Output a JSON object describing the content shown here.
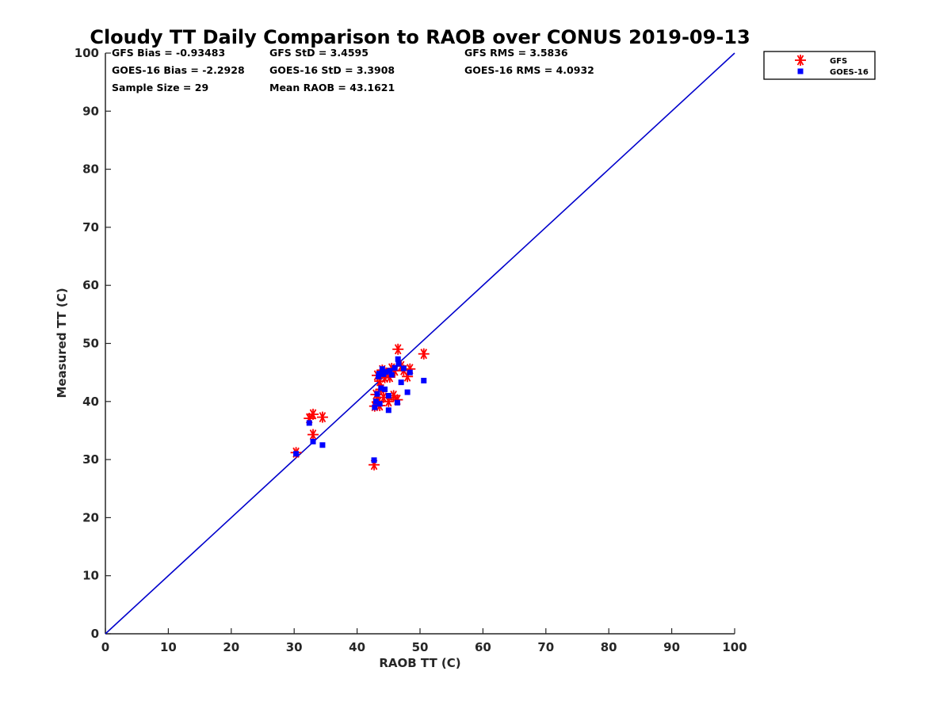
{
  "chart_data": {
    "type": "scatter",
    "title": "Cloudy TT Daily Comparison to RAOB over CONUS 2019-09-13",
    "xlabel": "RAOB TT (C)",
    "ylabel": "Measured TT (C)",
    "xlim": [
      0,
      100
    ],
    "ylim": [
      0,
      100
    ],
    "xticks": [
      "0",
      "10",
      "20",
      "30",
      "40",
      "50",
      "60",
      "70",
      "80",
      "90",
      "100"
    ],
    "yticks": [
      "0",
      "10",
      "20",
      "30",
      "40",
      "50",
      "60",
      "70",
      "80",
      "90",
      "100"
    ],
    "grid": false,
    "legend_position": "outside-top-right",
    "reference_line": {
      "x": [
        0,
        100
      ],
      "y": [
        0,
        100
      ],
      "color": "#0000cc"
    },
    "stats": [
      "GFS Bias = -0.93483",
      "GFS StD = 3.4595",
      "GFS RMS = 3.5836",
      "GOES-16 Bias = -2.2928",
      "GOES-16 StD = 3.3908",
      "GOES-16 RMS = 4.0932",
      "Sample Size = 29",
      "Mean RAOB = 43.1621"
    ],
    "series": [
      {
        "name": "GFS",
        "marker": "asterisk",
        "color": "#ff0000",
        "points": [
          [
            30.3,
            31.2
          ],
          [
            32.4,
            37.1
          ],
          [
            33.0,
            37.8
          ],
          [
            33.0,
            34.3
          ],
          [
            34.5,
            37.3
          ],
          [
            42.7,
            29.1
          ],
          [
            42.8,
            39.2
          ],
          [
            43.0,
            41.2
          ],
          [
            43.2,
            44.5
          ],
          [
            43.4,
            40.0
          ],
          [
            43.6,
            43.5
          ],
          [
            43.8,
            42.1
          ],
          [
            44.0,
            45.4
          ],
          [
            44.2,
            40.7
          ],
          [
            44.4,
            44.1
          ],
          [
            44.6,
            44.9
          ],
          [
            45.0,
            40.0
          ],
          [
            45.2,
            44.2
          ],
          [
            45.5,
            45.7
          ],
          [
            46.0,
            45.3
          ],
          [
            46.4,
            40.3
          ],
          [
            46.5,
            49.0
          ],
          [
            47.0,
            46.1
          ],
          [
            47.4,
            45.4
          ],
          [
            48.0,
            44.3
          ],
          [
            48.4,
            45.6
          ],
          [
            50.6,
            48.2
          ],
          [
            43.6,
            39.3
          ],
          [
            45.8,
            41.0
          ]
        ]
      },
      {
        "name": "GOES-16",
        "marker": "square",
        "color": "#0000ff",
        "points": [
          [
            30.3,
            31.0
          ],
          [
            32.4,
            36.3
          ],
          [
            33.0,
            33.1
          ],
          [
            34.5,
            32.5
          ],
          [
            42.7,
            29.9
          ],
          [
            42.8,
            39.0
          ],
          [
            43.0,
            40.0
          ],
          [
            43.2,
            41.3
          ],
          [
            43.4,
            44.3
          ],
          [
            43.6,
            39.6
          ],
          [
            43.8,
            42.3
          ],
          [
            44.0,
            45.6
          ],
          [
            44.2,
            44.7
          ],
          [
            44.4,
            42.1
          ],
          [
            44.6,
            45.1
          ],
          [
            45.0,
            38.5
          ],
          [
            45.0,
            41.0
          ],
          [
            45.2,
            45.3
          ],
          [
            45.5,
            44.6
          ],
          [
            46.0,
            45.8
          ],
          [
            46.4,
            39.8
          ],
          [
            46.5,
            47.3
          ],
          [
            46.6,
            46.5
          ],
          [
            47.0,
            43.3
          ],
          [
            47.4,
            45.7
          ],
          [
            48.0,
            41.6
          ],
          [
            48.4,
            45.0
          ],
          [
            50.6,
            43.6
          ],
          [
            43.5,
            44.8
          ]
        ]
      }
    ]
  }
}
